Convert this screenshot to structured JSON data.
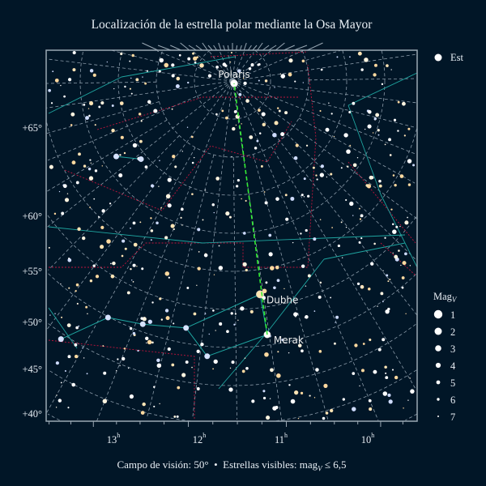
{
  "title": "Localización de la estrella polar mediante la Osa Mayor",
  "footer": {
    "fov_label": "Campo de visión: 50°",
    "separator": "•",
    "visible_prefix": "Estrellas visibles: mag",
    "visible_sub": "V",
    "visible_suffix": " ≤ 6,5"
  },
  "legend": {
    "series_label": "Est",
    "mag_title": "Mag",
    "mag_sub": "V",
    "mag_entries": [
      "1",
      "2",
      "3",
      "4",
      "5",
      "6",
      "7"
    ]
  },
  "chart_data": {
    "type": "scatter",
    "projection": "stereographic sky map",
    "background_color": "#011627",
    "constellation_line_color": "#1fa5a0",
    "boundary_color": "#c0143c",
    "pointer_line_color": "#33ee33",
    "dec_ticks": [
      "+65°",
      "+60°",
      "+55°",
      "+50°",
      "+45°",
      "+40°"
    ],
    "ra_ticks": [
      "13",
      "12",
      "11",
      "10"
    ],
    "ra_unit": "h",
    "named_stars": [
      {
        "name": "Polaris",
        "ra_h": 2.53,
        "dec": 89.26,
        "mag": 2.0,
        "labeled": true
      },
      {
        "name": "Dubhe",
        "ra_h": 11.06,
        "dec": 61.75,
        "mag": 1.8,
        "labeled": true
      },
      {
        "name": "Merak",
        "ra_h": 11.03,
        "dec": 56.38,
        "mag": 2.4,
        "labeled": true
      }
    ],
    "pointer": [
      "Merak",
      "Dubhe",
      "Polaris"
    ]
  }
}
